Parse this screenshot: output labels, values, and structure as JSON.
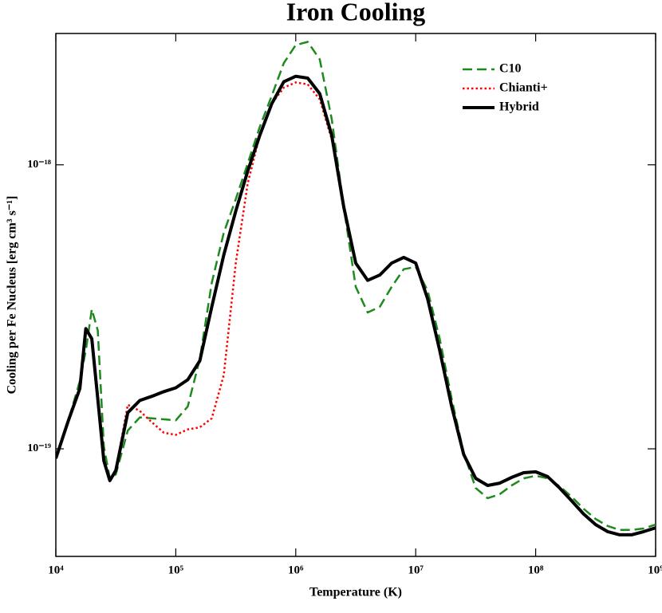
{
  "chart_data": {
    "type": "line",
    "title": "Iron Cooling",
    "xlabel": "Temperature (K)",
    "ylabel": "Cooling per Fe Nucleus [erg cm³ s⁻¹]",
    "x_scale": "log",
    "y_scale": "log",
    "legend": "upper right",
    "xlim": [
      10000.0,
      1000000000.0
    ],
    "ylim": [
      4.18e-20,
      2.9e-18
    ],
    "xticks": [
      {
        "value": 10000.0,
        "label": "10⁴"
      },
      {
        "value": 100000.0,
        "label": "10⁵"
      },
      {
        "value": 1000000.0,
        "label": "10⁶"
      },
      {
        "value": 10000000.0,
        "label": "10⁷"
      },
      {
        "value": 100000000.0,
        "label": "10⁸"
      },
      {
        "value": 1000000000.0,
        "label": "10⁹"
      }
    ],
    "yticks": [
      {
        "value": 1e-19,
        "label": "10⁻¹⁹"
      },
      {
        "value": 1e-18,
        "label": "10⁻¹⁸"
      }
    ],
    "x": [
      10000.0,
      12590,
      15850,
      17780,
      19950,
      22390,
      25120,
      28180,
      31620,
      39810,
      50120,
      63100,
      79430,
      100000.0,
      125900,
      158500,
      199500,
      251200,
      316200,
      398100,
      501200,
      631000,
      794300,
      1000000.0,
      1259000.0,
      1585000.0,
      1995000.0,
      2512000.0,
      3162000.0,
      3981000.0,
      5012000.0,
      6310000.0,
      7943000.0,
      10000000.0,
      12590000.0,
      15850000.0,
      19950000.0,
      25120000.0,
      31620000.0,
      39810000.0,
      50120000.0,
      63100000.0,
      79430000.0,
      100000000.0,
      125900000.0,
      158500000.0,
      199500000.0,
      251200000.0,
      316200000.0,
      398100000.0,
      501200000.0,
      631000000.0,
      794300000.0,
      1000000000.0
    ],
    "series": [
      {
        "name": "C10",
        "color": "#1e8a1e",
        "style": "dashed",
        "values": [
          9.25e-20,
          1.24e-19,
          1.73e-19,
          2.22e-19,
          3.1e-19,
          2.61e-19,
          1.02e-19,
          7.87e-20,
          8.13e-20,
          1.16e-19,
          1.29e-19,
          1.28e-19,
          1.27e-19,
          1.26e-19,
          1.41e-19,
          2.07e-19,
          3.84e-19,
          5.77e-19,
          7.57e-19,
          1.01e-18,
          1.36e-18,
          1.75e-18,
          2.28e-18,
          2.64e-18,
          2.71e-18,
          2.35e-18,
          1.45e-18,
          7.1e-19,
          3.72e-19,
          3.02e-19,
          3.16e-19,
          3.72e-19,
          4.29e-19,
          4.37e-19,
          3.6e-19,
          2.44e-19,
          1.5e-19,
          9.68e-20,
          7.28e-20,
          6.7e-20,
          6.92e-20,
          7.43e-20,
          7.87e-20,
          8.04e-20,
          7.87e-20,
          7.38e-20,
          6.78e-20,
          6.15e-20,
          5.66e-20,
          5.35e-20,
          5.18e-20,
          5.18e-20,
          5.24e-20,
          5.41e-20
        ]
      },
      {
        "name": "Chianti+",
        "color": "#ff0000",
        "style": "dotted",
        "values": [
          9.25e-20,
          1.24e-19,
          1.63e-19,
          2.65e-19,
          2.44e-19,
          1.5e-19,
          9.08e-20,
          7.73e-20,
          8.39e-20,
          1.43e-19,
          1.36e-19,
          1.24e-19,
          1.14e-19,
          1.12e-19,
          1.17e-19,
          1.19e-19,
          1.28e-19,
          1.82e-19,
          4.51e-19,
          8.61e-19,
          1.27e-18,
          1.64e-18,
          1.87e-18,
          1.95e-18,
          1.92e-18,
          1.7e-18,
          1.23e-18,
          7.1e-19,
          4.51e-19,
          3.92e-19,
          4.09e-19,
          4.51e-19,
          4.72e-19,
          4.51e-19,
          3.37e-19,
          2.22e-19,
          1.41e-19,
          9.55e-20,
          7.87e-20,
          7.43e-20,
          7.57e-20,
          7.93e-20,
          8.24e-20,
          8.3e-20,
          7.98e-20,
          7.28e-20,
          6.56e-20,
          5.89e-20,
          5.41e-20,
          5.11e-20,
          4.98e-20,
          4.98e-20,
          5.11e-20,
          5.27e-20
        ]
      },
      {
        "name": "Hybrid",
        "color": "#000000",
        "style": "solid",
        "values": [
          9.25e-20,
          1.24e-19,
          1.63e-19,
          2.65e-19,
          2.44e-19,
          1.5e-19,
          9.08e-20,
          7.73e-20,
          8.39e-20,
          1.34e-19,
          1.48e-19,
          1.53e-19,
          1.59e-19,
          1.64e-19,
          1.75e-19,
          2.04e-19,
          3.16e-19,
          4.82e-19,
          6.87e-19,
          9.51e-19,
          1.27e-18,
          1.64e-18,
          1.96e-18,
          2.05e-18,
          2.02e-18,
          1.78e-18,
          1.27e-18,
          7.1e-19,
          4.51e-19,
          3.92e-19,
          4.09e-19,
          4.51e-19,
          4.72e-19,
          4.51e-19,
          3.37e-19,
          2.22e-19,
          1.41e-19,
          9.55e-20,
          7.87e-20,
          7.43e-20,
          7.57e-20,
          7.93e-20,
          8.24e-20,
          8.3e-20,
          7.98e-20,
          7.28e-20,
          6.56e-20,
          5.89e-20,
          5.41e-20,
          5.11e-20,
          4.98e-20,
          4.98e-20,
          5.11e-20,
          5.27e-20
        ]
      }
    ]
  }
}
